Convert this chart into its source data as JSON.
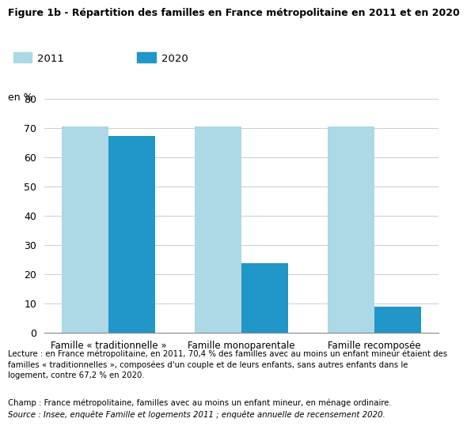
{
  "title": "Figure 1b - Répartition des familles en France métropolitaine en 2011 et en 2020",
  "ylabel": "en %",
  "ylim": [
    0,
    80
  ],
  "yticks": [
    0,
    10,
    20,
    30,
    40,
    50,
    60,
    70,
    80
  ],
  "categories": [
    "Famille « traditionnelle »",
    "Famille monoparentale",
    "Famille recomposée"
  ],
  "values_2011": [
    70.4,
    70.4,
    70.4
  ],
  "values_2020": [
    67.2,
    23.8,
    9.0
  ],
  "color_2011": "#ADD8E6",
  "color_2020": "#2196C8",
  "bar_width": 0.35,
  "legend_2011": "2011",
  "legend_2020": "2020",
  "footnote_lecture": "Lecture : en France métropolitaine, en 2011, 70,4 % des familles avec au moins un enfant mineur étaient des\nfamilles « traditionnelles », composées d'un couple et de leurs enfants, sans autres enfants dans le\nlogement, contre 67,2 % en 2020.",
  "footnote_champ": "Champ : France métropolitaine, familles avec au moins un enfant mineur, en ménage ordinaire.",
  "footnote_source": "Source : Insee, enquête Famille et logements 2011 ; enquête annuelle de recensement 2020."
}
